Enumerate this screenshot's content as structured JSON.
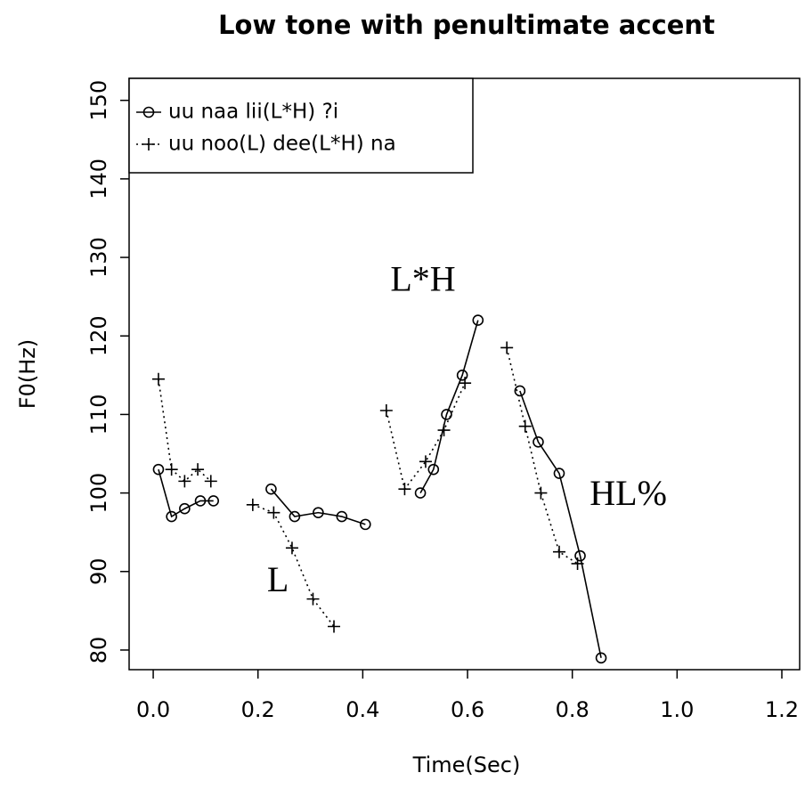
{
  "chart_data": {
    "type": "line",
    "title": "Low tone with penultimate accent",
    "x_label": "Time(Sec)",
    "y_label": "F0(Hz)",
    "xlim": [
      -0.046,
      1.234
    ],
    "ylim": [
      77.5,
      152.8
    ],
    "xticks": [
      {
        "value": 0,
        "label": "0.0"
      },
      0.2,
      0.4,
      0.6,
      0.8,
      {
        "value": 1,
        "label": "1.0"
      },
      1.2
    ],
    "yticks": [
      80,
      90,
      100,
      110,
      120,
      130,
      140,
      150
    ],
    "legend": "top-left",
    "series": [
      {
        "name": "uu naa lii(L*H) ?i",
        "color": "#000000",
        "marker": "circle",
        "dash": "solid",
        "x": [
          0.01,
          0.035,
          0.06,
          0.09,
          0.115,
          null,
          0.225,
          0.27,
          0.315,
          0.36,
          0.405,
          null,
          0.51,
          0.535,
          0.56,
          0.59,
          0.62,
          null,
          0.7,
          0.735,
          0.775,
          0.815,
          0.855
        ],
        "values": [
          103,
          97,
          98,
          99,
          99,
          null,
          100.5,
          97,
          97.5,
          97,
          96,
          null,
          100,
          103,
          110,
          115,
          122,
          null,
          113,
          106.5,
          102.5,
          92,
          79
        ]
      },
      {
        "name": "uu noo(L) dee(L*H) na",
        "color": "#000000",
        "marker": "plus",
        "dash": "dotted",
        "x": [
          0.01,
          0.035,
          0.06,
          0.085,
          0.11,
          null,
          0.19,
          0.23,
          0.265,
          0.305,
          0.345,
          null,
          0.445,
          0.48,
          0.52,
          0.555,
          0.595,
          null,
          0.675,
          0.71,
          0.74,
          0.775,
          0.81
        ],
        "values": [
          114.5,
          103,
          101.5,
          103,
          101.5,
          null,
          98.5,
          97.5,
          93,
          86.5,
          83,
          null,
          110.5,
          100.5,
          104,
          108,
          114,
          null,
          118.5,
          108.5,
          100,
          92.5,
          91
        ]
      }
    ],
    "annotations": [
      {
        "text": "L*H",
        "x": 0.515,
        "y": 126.8
      },
      {
        "text": "L",
        "x": 0.238,
        "y": 88.5
      },
      {
        "text": "HL%",
        "x": 0.907,
        "y": 99.5
      }
    ]
  }
}
